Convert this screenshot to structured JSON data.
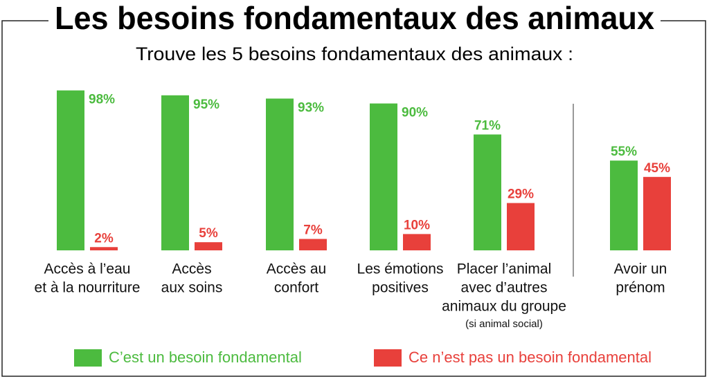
{
  "chart_data": {
    "type": "bar",
    "title": "Les besoins fondamentaux des animaux",
    "subtitle": "Trouve les 5 besoins fondamentaux des animaux :",
    "categories": [
      [
        "Accès à l’eau",
        "et à la nourriture"
      ],
      [
        "Accès",
        "aux soins"
      ],
      [
        "Accès au",
        "confort"
      ],
      [
        "Les émotions",
        "positives"
      ],
      [
        "Placer l’animal",
        "avec d’autres",
        "animaux du groupe"
      ],
      [
        "Avoir un",
        "prénom"
      ]
    ],
    "annotation": "(si animal social)",
    "ylim": [
      0,
      100
    ],
    "series": [
      {
        "name": "C’est un besoin fondamental",
        "color": "#4cbb3f",
        "values": [
          98,
          95,
          93,
          90,
          71,
          55
        ],
        "value_labels": [
          "98%",
          "95%",
          "93%",
          "90%",
          "71%",
          "55%"
        ]
      },
      {
        "name": "Ce n’est pas un besoin fondamental",
        "color": "#e8403b",
        "values": [
          2,
          5,
          7,
          10,
          29,
          45
        ],
        "value_labels": [
          "2%",
          "5%",
          "7%",
          "10%",
          "29%",
          "45%"
        ]
      }
    ]
  }
}
